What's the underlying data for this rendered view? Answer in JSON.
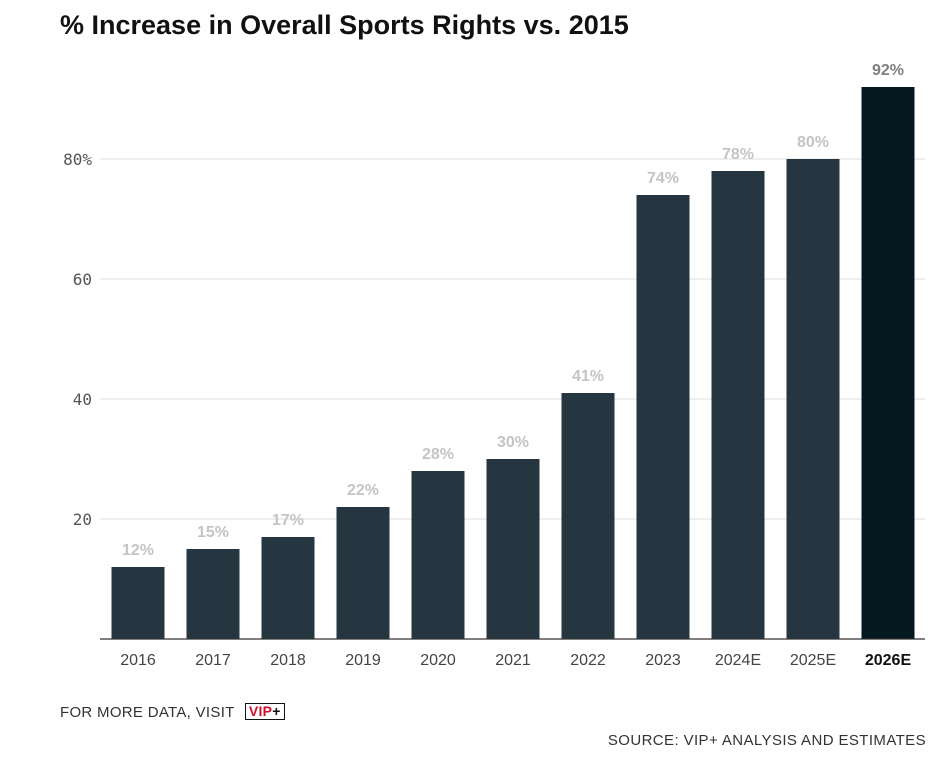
{
  "title": "% Increase in Overall Sports Rights vs. 2015",
  "footer": {
    "more_data": "FOR MORE DATA, VISIT",
    "badge_text": "VIP",
    "badge_plus": "+",
    "source": "SOURCE: VIP+ ANALYSIS AND ESTIMATES"
  },
  "colors": {
    "bar": "#263640",
    "highlight_bar": "#041820",
    "value_label": "#c4c4c4",
    "highlight_value_label": "#808080",
    "grid": "#dcdcdc",
    "axis": "#333333",
    "badge_red": "#d0102b"
  },
  "chart_data": {
    "type": "bar",
    "title": "% Increase in Overall Sports Rights vs. 2015",
    "xlabel": "",
    "ylabel": "",
    "categories": [
      "2016",
      "2017",
      "2018",
      "2019",
      "2020",
      "2021",
      "2022",
      "2023",
      "2024E",
      "2025E",
      "2026E"
    ],
    "values": [
      12,
      15,
      17,
      22,
      28,
      30,
      41,
      74,
      78,
      80,
      92
    ],
    "value_labels": [
      "12%",
      "15%",
      "17%",
      "22%",
      "28%",
      "30%",
      "41%",
      "74%",
      "78%",
      "80%",
      "92%"
    ],
    "highlight_index": 10,
    "ylim": [
      0,
      92
    ],
    "yticks": [
      20,
      40,
      60,
      80
    ],
    "ytick_labels": [
      "20",
      "40",
      "60",
      "80%"
    ],
    "grid": true
  }
}
